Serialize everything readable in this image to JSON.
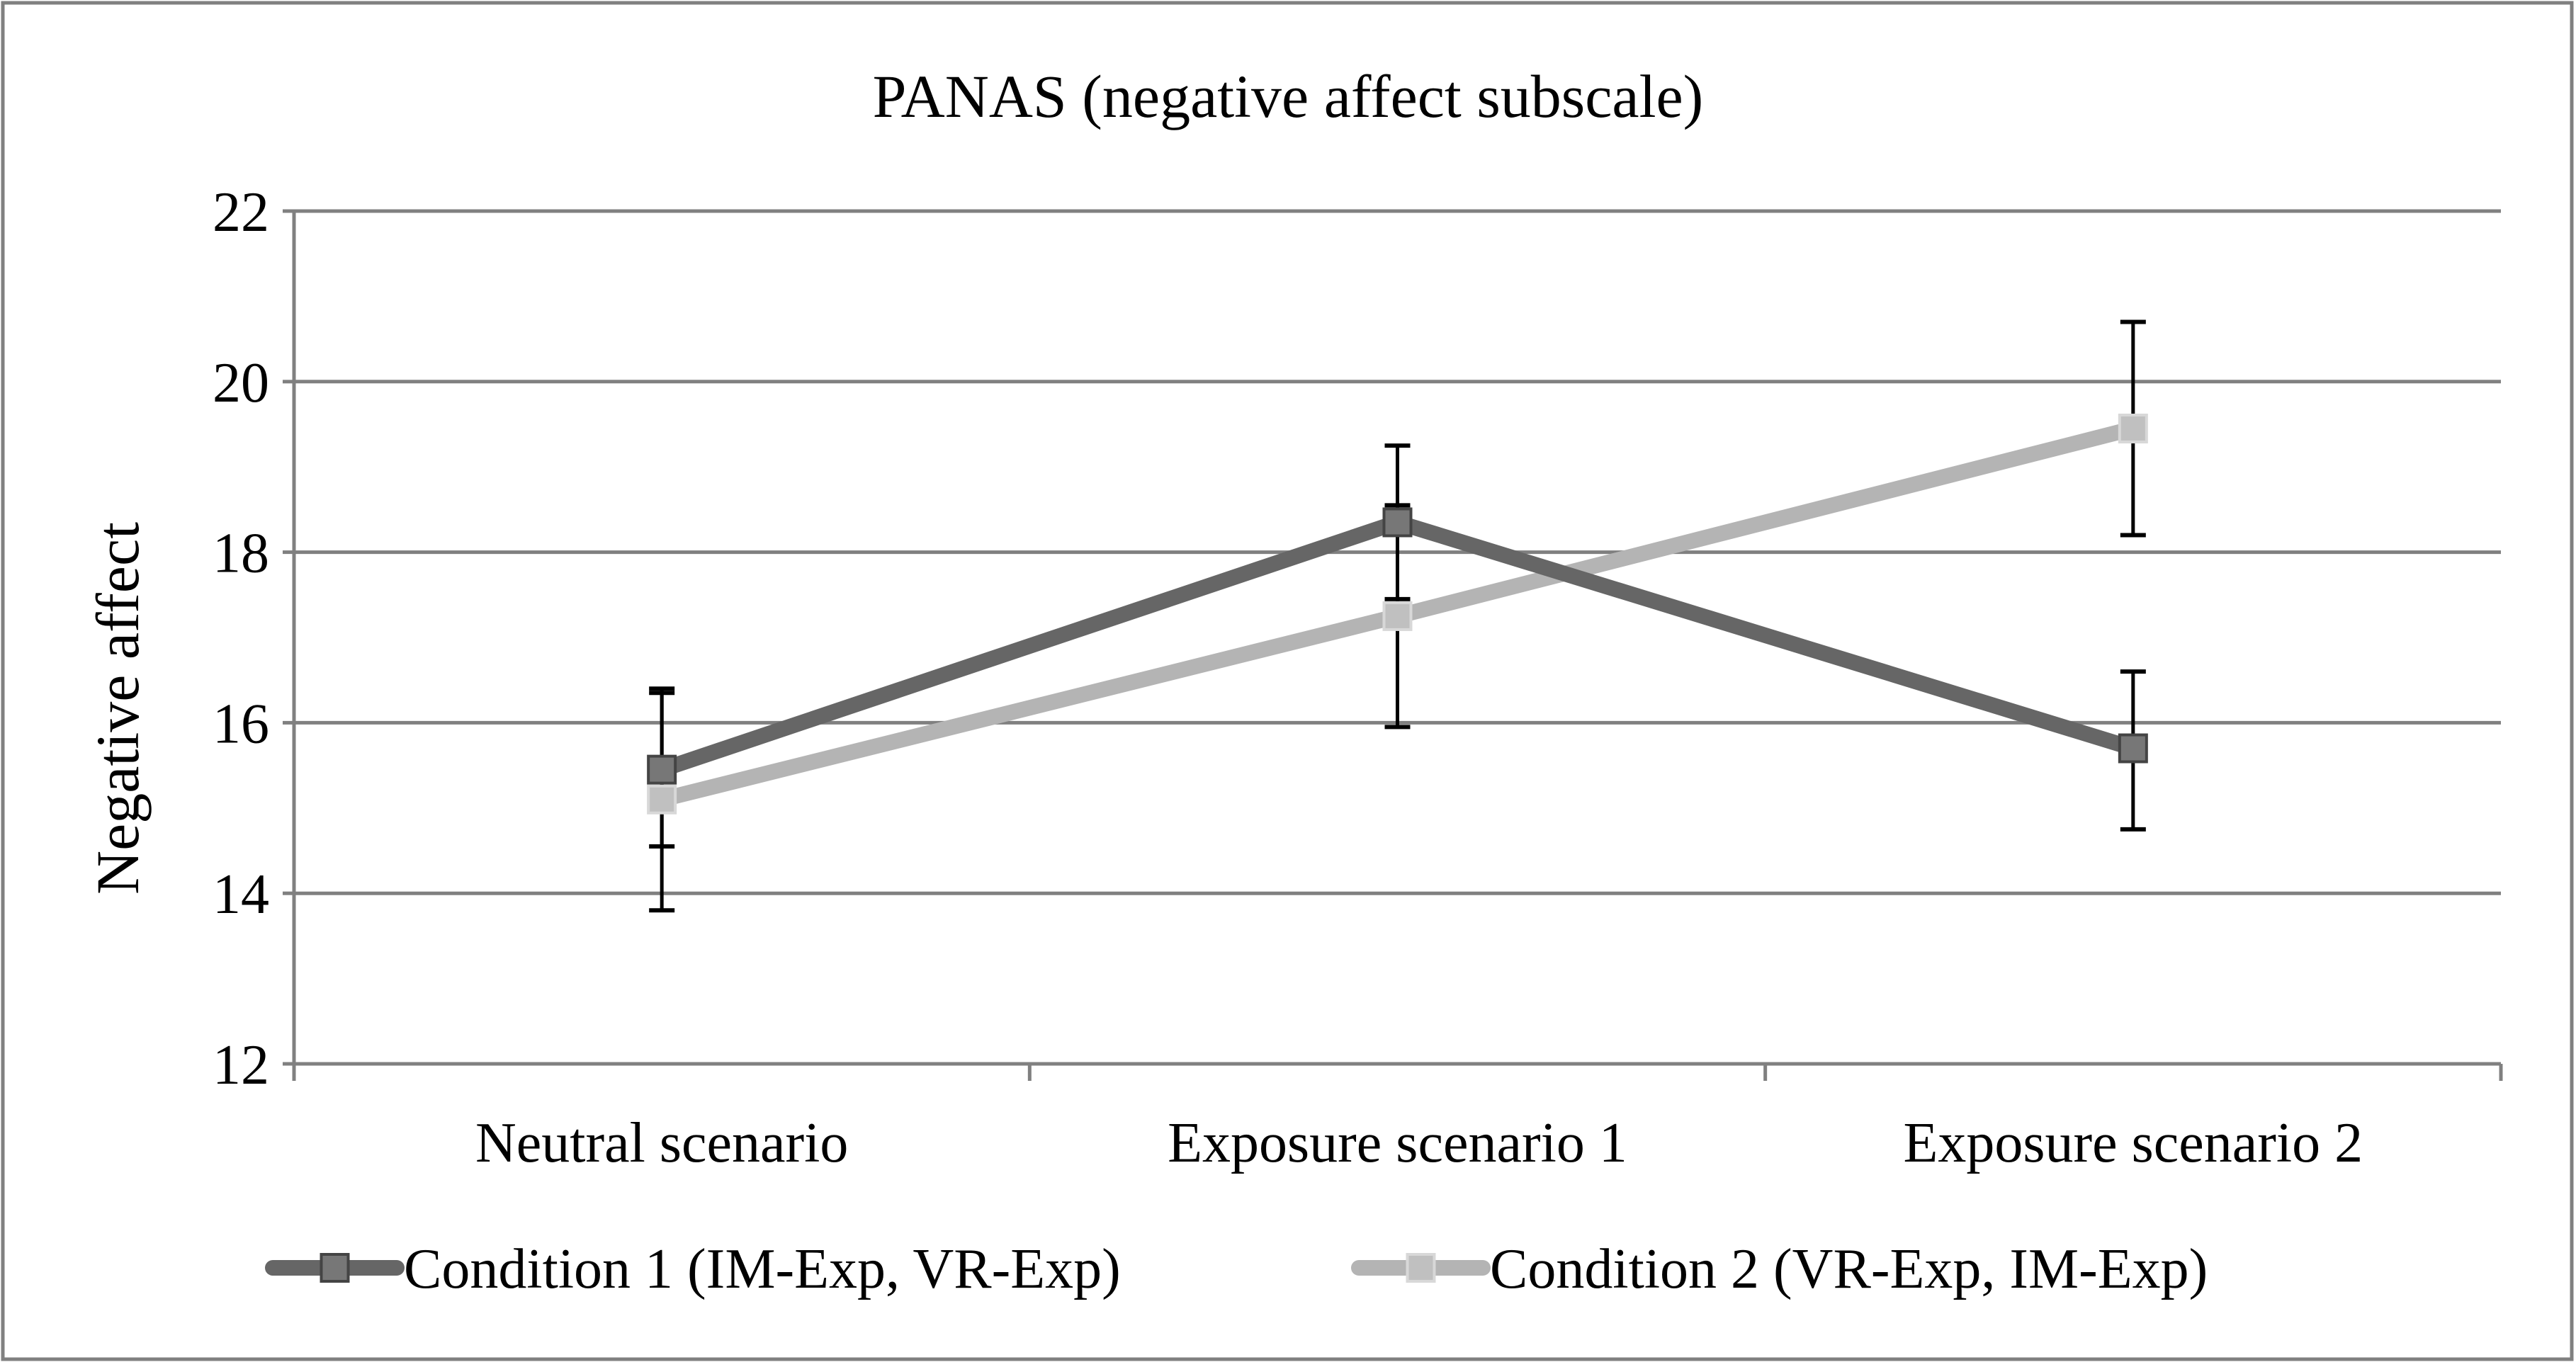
{
  "chart_data": {
    "type": "line",
    "title": "PANAS (negative affect subscale)",
    "xlabel": "",
    "ylabel": "Negative affect",
    "categories": [
      "Neutral scenario",
      "Exposure scenario 1",
      "Exposure scenario 2"
    ],
    "ylim": [
      12,
      22
    ],
    "yticks": [
      12,
      14,
      16,
      18,
      20,
      22
    ],
    "grid": true,
    "legend_position": "bottom",
    "series": [
      {
        "name": "Condition 1 (IM-Exp, VR-Exp)",
        "values": [
          15.45,
          18.35,
          15.7
        ],
        "error_low": [
          14.55,
          17.45,
          14.75
        ],
        "error_high": [
          16.35,
          19.25,
          16.6
        ],
        "line_color": "#666666",
        "marker_color": "#777777"
      },
      {
        "name": "Condition 2 (VR-Exp, IM-Exp)",
        "values": [
          15.1,
          17.25,
          19.45
        ],
        "error_low": [
          13.8,
          15.95,
          18.2
        ],
        "error_high": [
          16.4,
          18.55,
          20.7
        ],
        "line_color": "#b4b4b4",
        "marker_color": "#c0c0c0"
      }
    ]
  }
}
